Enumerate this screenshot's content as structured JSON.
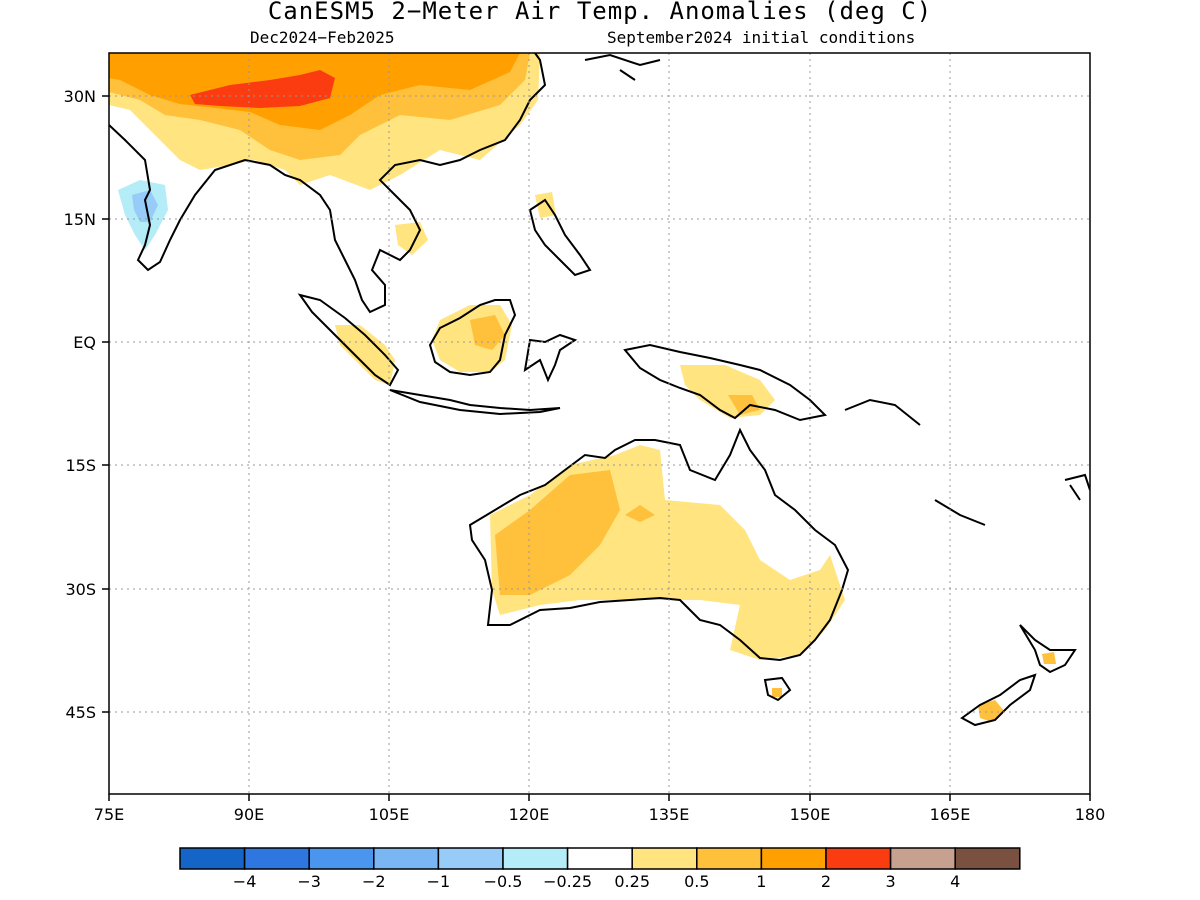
{
  "title": "CanESM5 2−Meter Air Temp. Anomalies (deg C)",
  "subtitle_left": "Dec2024−Feb2025",
  "subtitle_right": "September2024 initial conditions",
  "lat_ticks": [
    "30N",
    "15N",
    "EQ",
    "15S",
    "30S",
    "45S"
  ],
  "lon_ticks": [
    "75E",
    "90E",
    "105E",
    "120E",
    "135E",
    "150E",
    "165E",
    "180"
  ],
  "colorbar": {
    "labels": [
      "−4",
      "−3",
      "−2",
      "−1",
      "−0.5",
      "−0.25",
      "0.25",
      "0.5",
      "1",
      "2",
      "3",
      "4"
    ],
    "colors": [
      "#1565c8",
      "#2e76e0",
      "#4a96ee",
      "#7ab6f4",
      "#98ccf8",
      "#b4ecf8",
      "#ffffff",
      "#ffe480",
      "#ffc03c",
      "#ffa000",
      "#fa3c10",
      "#c8a090",
      "#7a5040"
    ]
  }
}
